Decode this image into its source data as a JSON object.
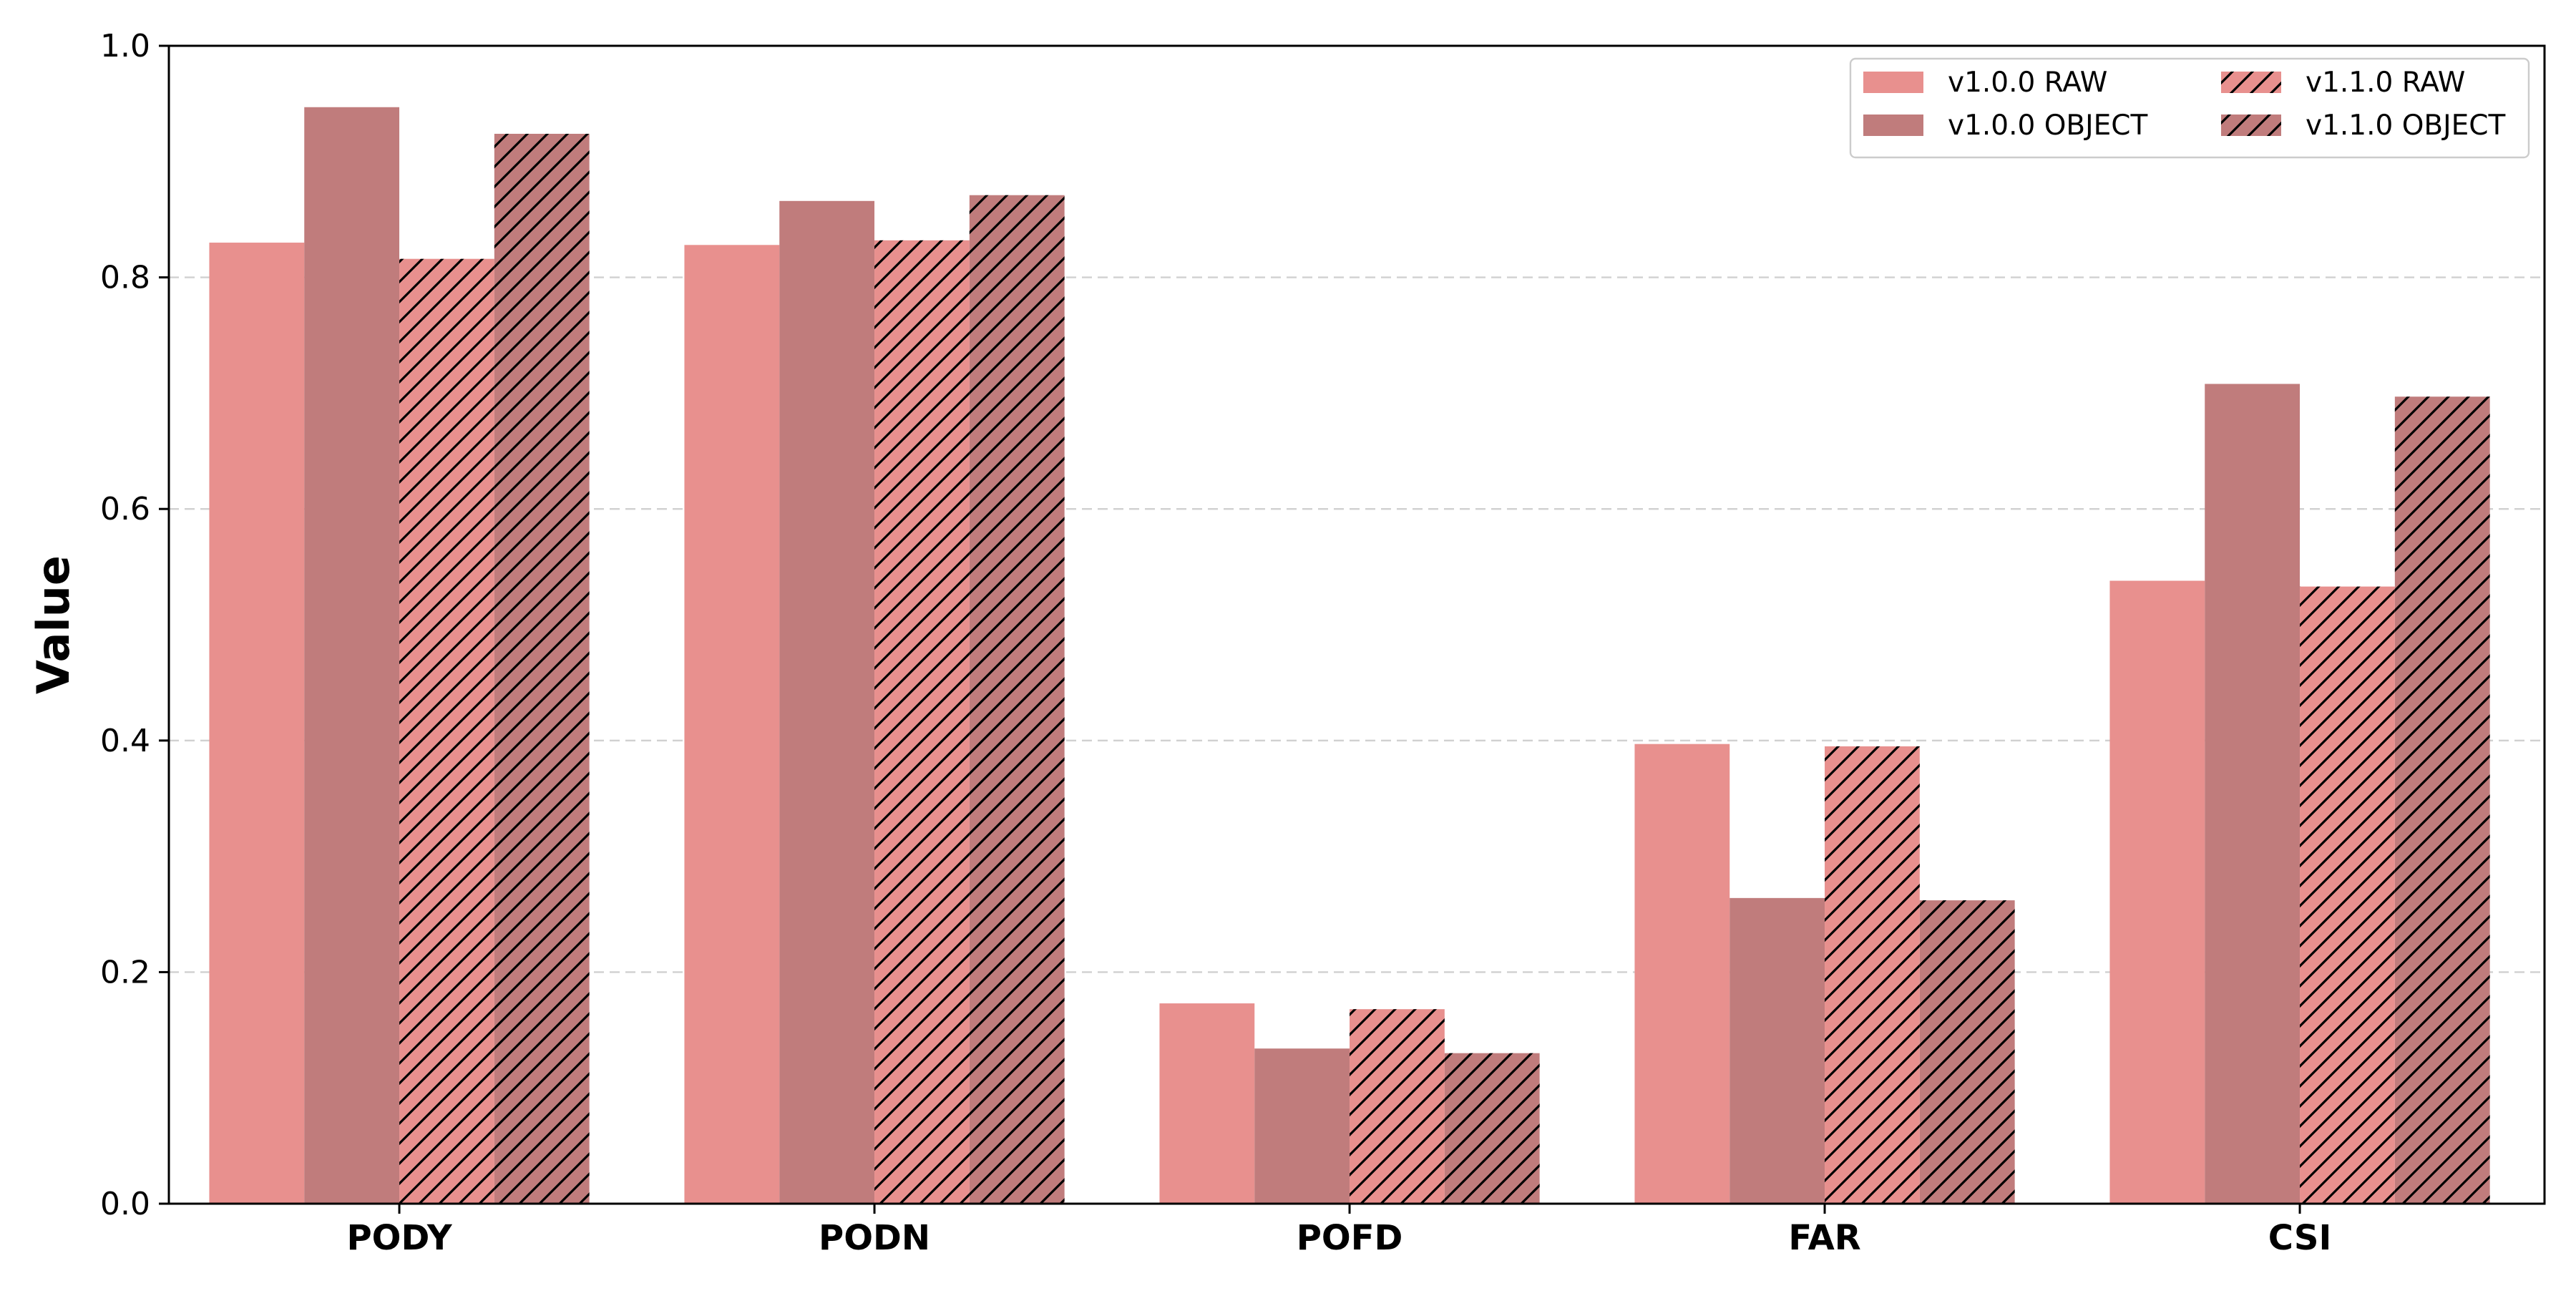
{
  "chart_data": {
    "type": "bar",
    "title": "",
    "xlabel": "",
    "ylabel": "Value",
    "ylim": [
      0,
      1.0
    ],
    "yticks": [
      "0.0",
      "0.2",
      "0.4",
      "0.6",
      "0.8",
      "1.0"
    ],
    "categories": [
      "PODY",
      "PODN",
      "POFD",
      "FAR",
      "CSI"
    ],
    "grid": "horizontal dashed",
    "legend_position": "top-right",
    "legend_columns": 2,
    "series": [
      {
        "name": "v1.0.0 RAW",
        "color": "#e8908e",
        "hatch": false,
        "values": [
          0.83,
          0.828,
          0.173,
          0.397,
          0.538
        ]
      },
      {
        "name": "v1.0.0 OBJECT",
        "color": "#c07c7c",
        "hatch": false,
        "values": [
          0.947,
          0.866,
          0.134,
          0.264,
          0.708
        ]
      },
      {
        "name": "v1.1.0 RAW",
        "color": "#e8908e",
        "hatch": true,
        "values": [
          0.816,
          0.832,
          0.168,
          0.395,
          0.533
        ]
      },
      {
        "name": "v1.1.0 OBJECT",
        "color": "#c07c7c",
        "hatch": true,
        "values": [
          0.924,
          0.871,
          0.13,
          0.262,
          0.697
        ]
      }
    ]
  }
}
